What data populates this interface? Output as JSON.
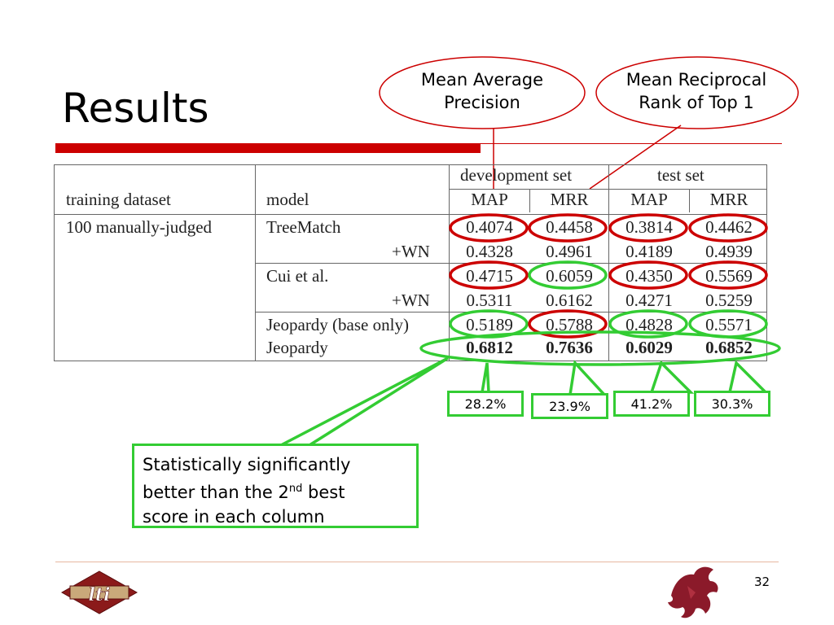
{
  "slide": {
    "title": "Results",
    "page_number": "32"
  },
  "callouts": {
    "map": "Mean Average Precision",
    "mrr": "Mean Reciprocal Rank of Top 1"
  },
  "table": {
    "group_headers": [
      "development set",
      "test set"
    ],
    "headers": [
      "training dataset",
      "model",
      "MAP",
      "MRR",
      "MAP",
      "MRR"
    ],
    "dataset": "100 manually-judged",
    "rows": [
      {
        "model": "TreeMatch",
        "values": [
          "0.4074",
          "0.4458",
          "0.3814",
          "0.4462"
        ]
      },
      {
        "model": "+WN",
        "values": [
          "0.4328",
          "0.4961",
          "0.4189",
          "0.4939"
        ]
      },
      {
        "model": "Cui et al.",
        "values": [
          "0.4715",
          "0.6059",
          "0.4350",
          "0.5569"
        ]
      },
      {
        "model": "+WN",
        "values": [
          "0.5311",
          "0.6162",
          "0.4271",
          "0.5259"
        ]
      },
      {
        "model": "Jeopardy (base only)",
        "values": [
          "0.5189",
          "0.5788",
          "0.4828",
          "0.5571"
        ]
      },
      {
        "model": "Jeopardy",
        "values": [
          "0.6812",
          "0.7636",
          "0.6029",
          "0.6852"
        ]
      }
    ]
  },
  "improvements": [
    "28.2%",
    "23.9%",
    "41.2%",
    "30.3%"
  ],
  "note": {
    "line1": "Statistically significantly",
    "line2_a": "better than the 2",
    "line2_sup": "nd",
    "line2_b": " best",
    "line3": "score in each column"
  },
  "colors": {
    "accent_red": "#cc0000",
    "highlight_green": "#33cc33"
  },
  "logos": {
    "left": "lti",
    "right": "griffin-icon"
  }
}
